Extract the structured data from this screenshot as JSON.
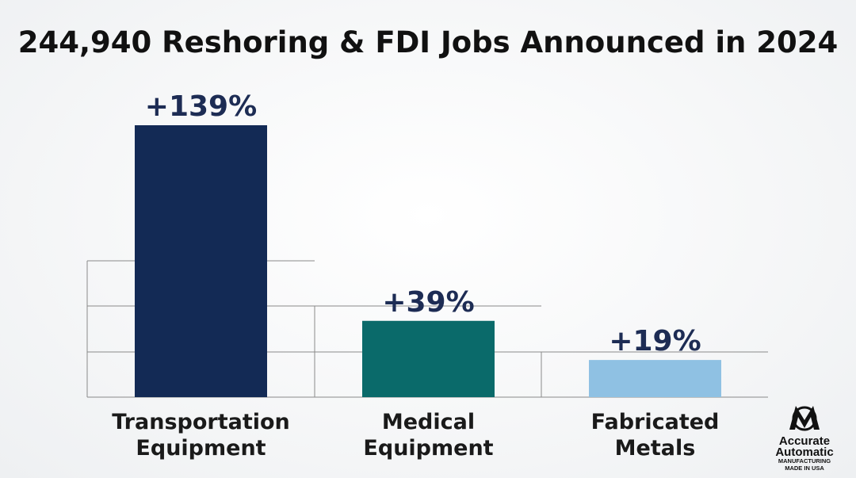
{
  "chart_data": {
    "type": "bar",
    "title": "244,940 Reshoring & FDI Jobs Announced in 2024",
    "categories": [
      [
        "Transportation",
        "Equipment"
      ],
      [
        "Medical",
        "Equipment"
      ],
      [
        "Fabricated",
        "Metals"
      ]
    ],
    "values": [
      139,
      39,
      19
    ],
    "value_labels": [
      "+139%",
      "+39%",
      "+19%"
    ],
    "value_unit": "percent change",
    "colors": [
      "#132a55",
      "#0a6a6a",
      "#8fc1e3"
    ],
    "xlabel": "",
    "ylabel": "",
    "ylim": [
      0,
      150
    ],
    "grid": true,
    "legend": "none"
  },
  "logo": {
    "line1": "Accurate",
    "line2": "Automatic",
    "line3": "MANUFACTURING",
    "line4": "MADE IN USA",
    "color": "#111111"
  }
}
